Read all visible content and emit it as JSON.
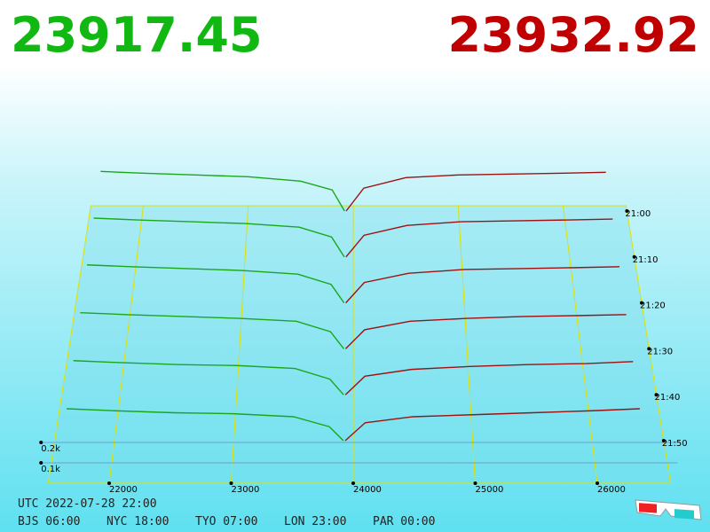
{
  "header": {
    "bid": 23917.45,
    "ask": 23932.92
  },
  "footer": {
    "utc": "UTC 2022-07-28 22:00",
    "zones": [
      "BJS 06:00",
      "NYC 18:00",
      "TYO 07:00",
      "LON 23:00",
      "PAR 00:00"
    ]
  },
  "chart_data": {
    "type": "depth3d",
    "bid_color": "#1aa81a",
    "ask_color": "#a01010",
    "xlim": [
      21500,
      26600
    ],
    "xticks": [
      22000,
      23000,
      24000,
      25000,
      26000
    ],
    "yticks": [
      {
        "value": 100,
        "label": "0.1k"
      },
      {
        "value": 200,
        "label": "0.2k"
      }
    ],
    "bid_x": [
      21600,
      22000,
      22500,
      23000,
      23500,
      23800,
      23917.45
    ],
    "ask_x": [
      23932.92,
      24100,
      24500,
      25000,
      25500,
      26000,
      26400
    ],
    "series": [
      {
        "name": "21:00",
        "bids": [
          225,
          215,
          205,
          195,
          170,
          120,
          0
        ],
        "asks": [
          0,
          130,
          190,
          205,
          210,
          215,
          220
        ]
      },
      {
        "name": "21:10",
        "bids": [
          215,
          205,
          195,
          185,
          165,
          110,
          0
        ],
        "asks": [
          0,
          120,
          175,
          195,
          200,
          205,
          210
        ]
      },
      {
        "name": "21:20",
        "bids": [
          205,
          195,
          185,
          175,
          155,
          100,
          0
        ],
        "asks": [
          0,
          110,
          160,
          180,
          185,
          190,
          195
        ]
      },
      {
        "name": "21:30",
        "bids": [
          190,
          180,
          170,
          160,
          145,
          90,
          0
        ],
        "asks": [
          0,
          100,
          145,
          160,
          170,
          175,
          180
        ]
      },
      {
        "name": "21:40",
        "bids": [
          175,
          165,
          155,
          150,
          135,
          80,
          0
        ],
        "asks": [
          0,
          95,
          130,
          145,
          155,
          160,
          170
        ]
      },
      {
        "name": "21:50",
        "bids": [
          160,
          150,
          140,
          135,
          120,
          70,
          0
        ],
        "asks": [
          0,
          90,
          120,
          130,
          140,
          150,
          160
        ]
      }
    ]
  }
}
